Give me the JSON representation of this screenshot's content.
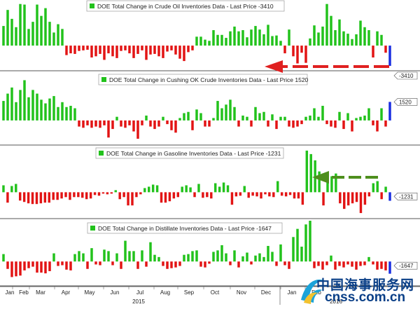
{
  "colors": {
    "positive": "#22c21c",
    "negative": "#e21414",
    "last": "#1a2ee0",
    "divider": "#555555",
    "legend_border": "#9a9a9a",
    "arrow_red": "#e02020",
    "arrow_green": "#4e8f1d",
    "watermark": "#0a3f87"
  },
  "chart_data": [
    {
      "type": "bar",
      "title": "DOE Total Change in Crude Oil Inventories Data - Last Price -3410",
      "last_value_label": "-3410",
      "ylim": [
        -4000,
        7200
      ],
      "zero_level": 0,
      "values": [
        3300,
        6000,
        4500,
        3100,
        7000,
        6900,
        2800,
        4000,
        6900,
        5000,
        6300,
        4000,
        2200,
        3600,
        2800,
        -1600,
        -1300,
        -1400,
        -900,
        -800,
        -700,
        -2000,
        -1800,
        -1400,
        -2400,
        -1300,
        -1800,
        -2100,
        -900,
        -800,
        -1300,
        -2100,
        -1400,
        -800,
        -2400,
        -1500,
        -1400,
        -1800,
        -2100,
        -1000,
        -800,
        -1500,
        -2200,
        -2600,
        -1100,
        -800,
        1500,
        1500,
        1000,
        800,
        2600,
        1800,
        1800,
        1300,
        2400,
        3200,
        2400,
        2600,
        1400,
        2700,
        3300,
        2700,
        1900,
        3500,
        1600,
        1700,
        800,
        -1300,
        2700,
        -1800,
        -3000,
        -1200,
        -2900,
        1200,
        3400,
        2200,
        3200,
        7000,
        5000,
        2600,
        4400,
        2400,
        2000,
        1100,
        1900,
        4200,
        3100,
        2600,
        -2000,
        2400,
        1800,
        -1200,
        -3410
      ],
      "series_style": "last bar drawn in blue"
    },
    {
      "type": "bar",
      "title": "DOE Total Change in Cushing OK Crude Inventories Data - Last Price 1520",
      "last_value_label": "1520",
      "ylim": [
        -1900,
        3900
      ],
      "zero_level": 0,
      "values": [
        1600,
        2200,
        2700,
        1500,
        2500,
        3300,
        1900,
        2500,
        2200,
        1700,
        1400,
        1800,
        2000,
        1100,
        1500,
        1100,
        1200,
        1000,
        -500,
        -600,
        -400,
        -600,
        -500,
        -600,
        -400,
        -1400,
        -700,
        300,
        -500,
        -600,
        -400,
        -900,
        -1500,
        -400,
        400,
        -500,
        -700,
        -500,
        300,
        -300,
        -800,
        -1000,
        200,
        600,
        700,
        -800,
        900,
        600,
        -500,
        -500,
        200,
        1600,
        1000,
        1300,
        1700,
        1100,
        -500,
        400,
        300,
        -500,
        1100,
        600,
        700,
        -500,
        500,
        -700,
        300,
        300,
        -500,
        -600,
        -500,
        -300,
        300,
        400,
        1000,
        300,
        1200,
        -300,
        -500,
        -600,
        700,
        -700,
        600,
        -900,
        200,
        300,
        400,
        1000,
        -400,
        -900,
        1000,
        -500,
        1520
      ],
      "series_style": "last bar drawn in blue"
    },
    {
      "type": "bar",
      "title": "DOE Total Change in Gasoline Inventories Data - Last Price -1231",
      "last_value_label": "-1231",
      "ylim": [
        -3600,
        6500
      ],
      "zero_level": 0,
      "values": [
        1000,
        -1500,
        900,
        1200,
        -1200,
        -1400,
        -1600,
        -1700,
        -1700,
        -1600,
        -1500,
        -1500,
        -1100,
        -1100,
        -900,
        -700,
        -1100,
        -700,
        -700,
        -800,
        -1000,
        -900,
        -400,
        -500,
        -200,
        -300,
        -200,
        300,
        -1000,
        -700,
        -1900,
        -1900,
        -700,
        -300,
        600,
        800,
        1100,
        1000,
        -1500,
        -1500,
        -1300,
        -900,
        -700,
        800,
        1000,
        700,
        -700,
        1200,
        -800,
        -700,
        -900,
        1300,
        800,
        1400,
        1000,
        -1800,
        -600,
        -500,
        900,
        -800,
        -500,
        -600,
        -900,
        -300,
        -600,
        -700,
        1600,
        -500,
        -600,
        -400,
        -900,
        -900,
        -1800,
        6000,
        5500,
        4600,
        3000,
        -1900,
        2700,
        2300,
        2700,
        -1600,
        -2400,
        -1900,
        -1600,
        -1400,
        -3000,
        -1800,
        -600,
        1300,
        1600,
        -1000,
        800,
        -1231
      ],
      "series_style": "last bar drawn in blue"
    },
    {
      "type": "bar",
      "title": "DOE Total Change in Distillate Inventories Data - Last Price -1647",
      "last_value_label": "-1647",
      "ylim": [
        -3100,
        5500
      ],
      "zero_level": 0,
      "values": [
        1000,
        -1000,
        -2100,
        -2000,
        -1900,
        -1200,
        -900,
        -700,
        -1500,
        -1500,
        -1600,
        -1300,
        1100,
        -600,
        -500,
        -1100,
        -1200,
        1000,
        1400,
        1100,
        -1000,
        1800,
        -400,
        -500,
        1600,
        1400,
        -500,
        1100,
        -1000,
        2800,
        1400,
        1400,
        -1000,
        1500,
        -700,
        2600,
        900,
        600,
        -600,
        -1000,
        -900,
        -800,
        -600,
        900,
        1000,
        1400,
        1500,
        -700,
        -800,
        -300,
        1300,
        1500,
        2200,
        1100,
        -500,
        1500,
        -800,
        700,
        1200,
        -400,
        800,
        1100,
        600,
        2100,
        1300,
        -600,
        2300,
        -500,
        -1000,
        3300,
        4400,
        2000,
        5000,
        5500,
        -900,
        -600,
        -1100,
        -500,
        800,
        -1100,
        -600,
        -800,
        -400,
        -700,
        -1100,
        -600,
        -500,
        600,
        -400,
        -1100,
        -1000,
        -1200,
        -1647
      ],
      "series_style": "last bar drawn in blue"
    }
  ],
  "x_axis": {
    "months": [
      {
        "label": "Jan"
      },
      {
        "label": "Feb"
      },
      {
        "label": "Mar"
      },
      {
        "label": "Apr"
      },
      {
        "label": "May"
      },
      {
        "label": "Jun"
      },
      {
        "label": "Jul"
      },
      {
        "label": "Aug"
      },
      {
        "label": "Sep"
      },
      {
        "label": "Oct"
      },
      {
        "label": "Nov"
      },
      {
        "label": "Dec"
      },
      {
        "label": "Jan"
      },
      {
        "label": "Feb"
      }
    ],
    "years": [
      {
        "label": "2015"
      },
      {
        "label": "2016"
      }
    ]
  },
  "watermark": {
    "cn": "中国海事服务网",
    "en": "cnss.com.cn"
  }
}
